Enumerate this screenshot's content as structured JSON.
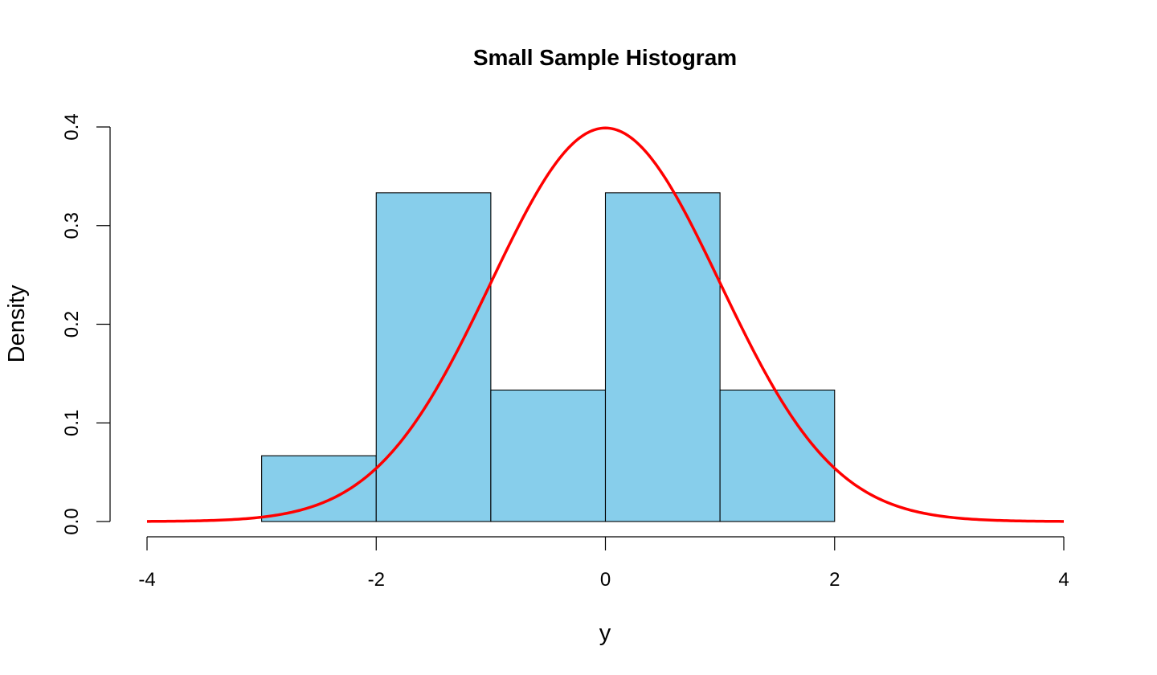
{
  "chart_data": {
    "type": "bar",
    "title": "Small Sample Histogram",
    "xlabel": "y",
    "ylabel": "Density",
    "xlim": [
      -4,
      4
    ],
    "ylim": [
      0,
      0.4
    ],
    "x_ticks": [
      -4,
      -2,
      0,
      2,
      4
    ],
    "y_ticks": [
      0.0,
      0.1,
      0.2,
      0.3,
      0.4
    ],
    "x_tick_labels": [
      "-4",
      "-2",
      "0",
      "2",
      "4"
    ],
    "y_tick_labels": [
      "0.0",
      "0.1",
      "0.2",
      "0.3",
      "0.4"
    ],
    "bins": [
      {
        "start": -3,
        "end": -2,
        "density": 0.0667
      },
      {
        "start": -2,
        "end": -1,
        "density": 0.3333
      },
      {
        "start": -1,
        "end": 0,
        "density": 0.1333
      },
      {
        "start": 0,
        "end": 1,
        "density": 0.3333
      },
      {
        "start": 1,
        "end": 2,
        "density": 0.1333
      }
    ],
    "bar_color": "#87CEEB",
    "curve": {
      "type": "normal-density",
      "mean": 0,
      "sd": 1,
      "x_range": [
        -4,
        4
      ],
      "color": "#FF0000"
    },
    "grid": false,
    "legend": "none"
  }
}
